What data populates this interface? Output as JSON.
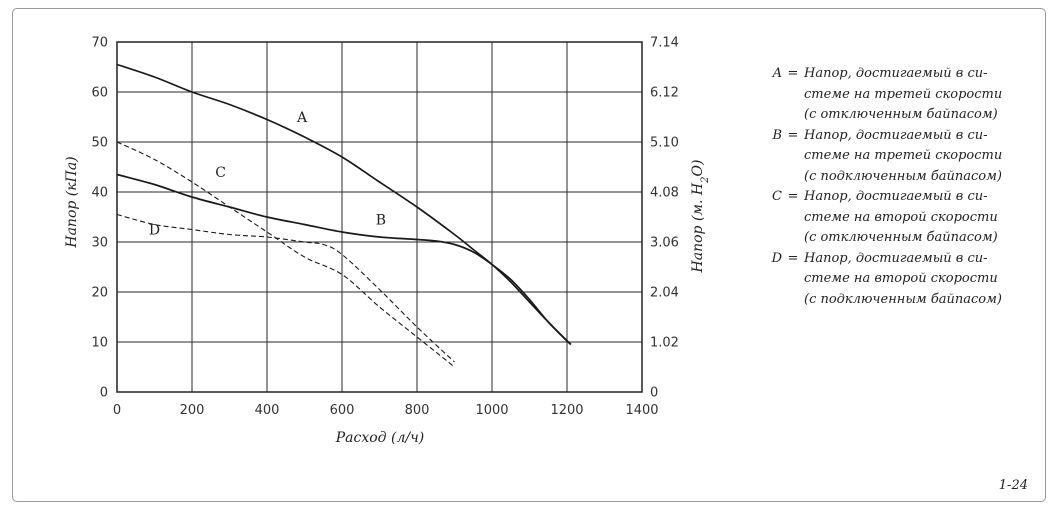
{
  "figure_number": "1-24",
  "chart_data": {
    "type": "line",
    "xlabel": "Расход (л/ч)",
    "ylabel_left": "Напор (кПа)",
    "ylabel_right_main": "Напор (м. H",
    "ylabel_right_sub": "2",
    "ylabel_right_end": "O)",
    "xlim": [
      0,
      1400
    ],
    "ylim": [
      0,
      70
    ],
    "grid": true,
    "x_ticks": [
      "0",
      "200",
      "400",
      "600",
      "800",
      "1000",
      "1200",
      "1400"
    ],
    "x_tick_values": [
      0,
      200,
      400,
      600,
      800,
      1000,
      1200,
      1400
    ],
    "y_ticks_left": [
      "0",
      "10",
      "20",
      "30",
      "40",
      "50",
      "60",
      "70"
    ],
    "y_tick_values": [
      0,
      10,
      20,
      30,
      40,
      50,
      60,
      70
    ],
    "y_ticks_right": [
      "0",
      "1.02",
      "2.04",
      "3.06",
      "4.08",
      "5.10",
      "6.12",
      "7.14"
    ],
    "series": [
      {
        "name": "A",
        "style": "solid",
        "label_at": [
          480,
          54
        ],
        "x": [
          0,
          100,
          200,
          300,
          400,
          500,
          600,
          700,
          800,
          900,
          950,
          1000,
          1050,
          1100,
          1150,
          1210
        ],
        "y": [
          65.5,
          63,
          60,
          57.5,
          54.5,
          51,
          47,
          42,
          37,
          31.5,
          28.5,
          25.5,
          22,
          18,
          14,
          9.5
        ]
      },
      {
        "name": "B",
        "style": "solid",
        "label_at": [
          690,
          33.5
        ],
        "x": [
          0,
          100,
          200,
          300,
          400,
          500,
          600,
          700,
          800,
          850,
          900,
          950,
          1000,
          1050,
          1100,
          1150,
          1210
        ],
        "y": [
          43.5,
          41.5,
          39,
          37,
          35,
          33.5,
          32,
          31,
          30.5,
          30.2,
          29.5,
          28,
          25.5,
          22.5,
          18.5,
          14,
          9.5
        ]
      },
      {
        "name": "C",
        "style": "dashed",
        "label_at": [
          262,
          43
        ],
        "x": [
          0,
          100,
          200,
          300,
          400,
          500,
          600,
          700,
          800,
          900
        ],
        "y": [
          50,
          46.5,
          42,
          37,
          32,
          27,
          23.5,
          17,
          11,
          5
        ]
      },
      {
        "name": "D",
        "style": "dashed",
        "label_at": [
          85,
          31.5
        ],
        "x": [
          0,
          100,
          200,
          300,
          400,
          500,
          550,
          600,
          700,
          800,
          900
        ],
        "y": [
          35.5,
          33.5,
          32.5,
          31.5,
          31,
          30,
          29.5,
          27.5,
          20.5,
          13,
          6
        ]
      }
    ]
  },
  "legend": [
    {
      "key": "A",
      "eq": "=",
      "lines": [
        "Напор, достигаемый в си-",
        "стеме на третей скорости",
        "(с отключенным байпасом)"
      ]
    },
    {
      "key": "B",
      "eq": "=",
      "lines": [
        "Напор, достигаемый в си-",
        "стеме на третей скорости",
        "(с подключенным байпасом)"
      ]
    },
    {
      "key": "C",
      "eq": "=",
      "lines": [
        "Напор, достигаемый в си-",
        "стеме на второй скорости",
        "(с отключенным байпасом)"
      ]
    },
    {
      "key": "D",
      "eq": "=",
      "lines": [
        "Напор, достигаемый в си-",
        "стеме на второй скорости",
        "(с подключенным байпасом)"
      ]
    }
  ]
}
